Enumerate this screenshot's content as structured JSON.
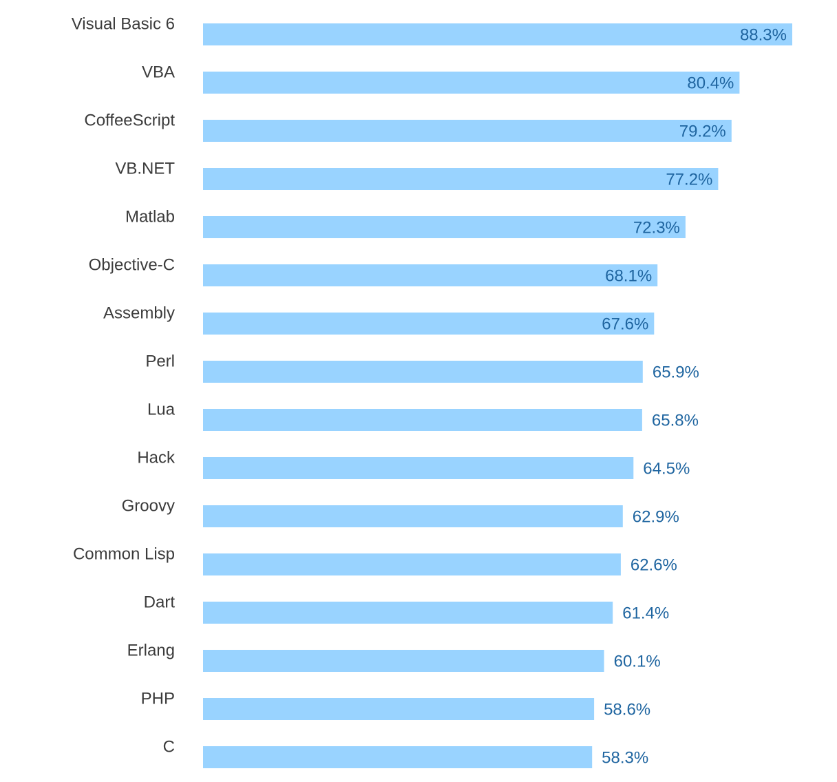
{
  "chart_data": {
    "type": "bar",
    "orientation": "horizontal",
    "categories": [
      "Visual Basic 6",
      "VBA",
      "CoffeeScript",
      "VB.NET",
      "Matlab",
      "Objective-C",
      "Assembly",
      "Perl",
      "Lua",
      "Hack",
      "Groovy",
      "Common Lisp",
      "Dart",
      "Erlang",
      "PHP",
      "C"
    ],
    "values": [
      88.3,
      80.4,
      79.2,
      77.2,
      72.3,
      68.1,
      67.6,
      65.9,
      65.8,
      64.5,
      62.9,
      62.6,
      61.4,
      60.1,
      58.6,
      58.3
    ],
    "value_labels": [
      "88.3%",
      "80.4%",
      "79.2%",
      "77.2%",
      "72.3%",
      "68.1%",
      "67.6%",
      "65.9%",
      "65.8%",
      "64.5%",
      "62.9%",
      "62.6%",
      "61.4%",
      "60.1%",
      "58.6%",
      "58.3%"
    ],
    "value_suffix": "%",
    "xlim": [
      0,
      88.3
    ],
    "grid": false,
    "legend": "none",
    "title": "",
    "xlabel": "",
    "ylabel": ""
  },
  "colors": {
    "bar": "#99d3ff",
    "value_text": "#1f65a0",
    "category_text": "#3b3b3b",
    "background": "#ffffff"
  }
}
